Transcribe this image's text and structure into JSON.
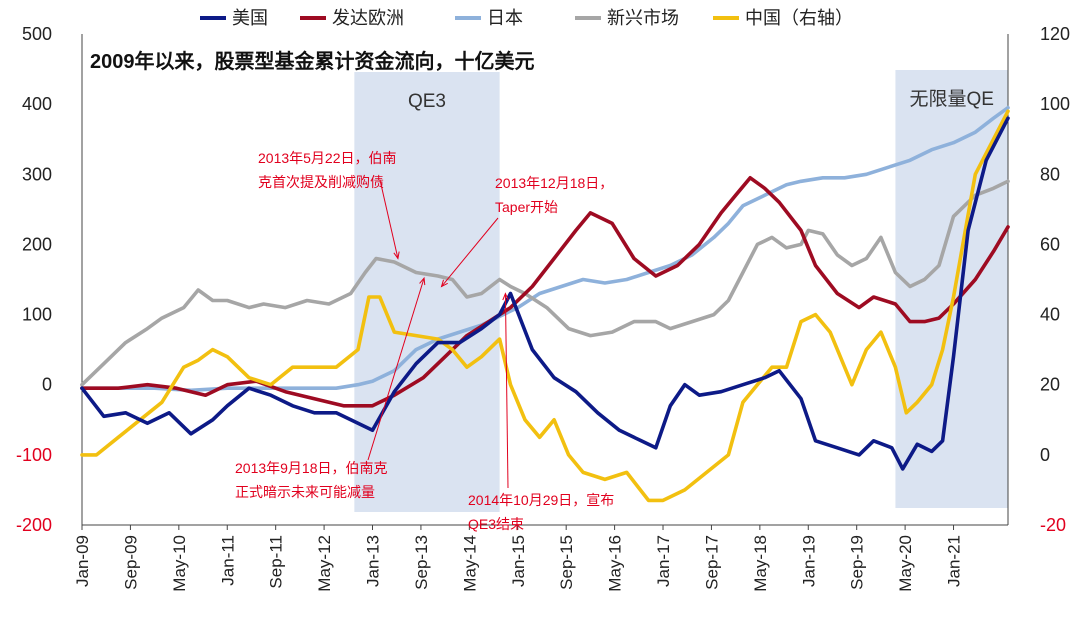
{
  "chart_data": {
    "type": "line",
    "title": "2009年以来，股票型基金累计资金流向，十亿美元",
    "x_ticks": [
      "Jan-09",
      "Sep-09",
      "May-10",
      "Jan-11",
      "Sep-11",
      "May-12",
      "Jan-13",
      "Sep-13",
      "May-14",
      "Jan-15",
      "Sep-15",
      "May-16",
      "Jan-17",
      "Sep-17",
      "May-18",
      "Jan-19",
      "Sep-19",
      "May-20",
      "Jan-21"
    ],
    "x_range": [
      2009.0,
      2021.75
    ],
    "y_left": {
      "ticks": [
        "500",
        "400",
        "300",
        "200",
        "100",
        "0",
        "-100",
        "-200"
      ],
      "range": [
        -200,
        500
      ]
    },
    "y_right": {
      "ticks": [
        "120",
        "100",
        "80",
        "60",
        "40",
        "20",
        "0",
        "-20"
      ],
      "range": [
        -20,
        120
      ]
    },
    "bands": [
      {
        "label": "QE3",
        "start": 2012.75,
        "end": 2014.75
      },
      {
        "label": "无限量QE",
        "start": 2020.2,
        "end": 2021.75
      }
    ],
    "annotations": [
      {
        "id": "a1",
        "lines": [
          "2013年5月22日，伯南",
          "克首次提及削减购债"
        ],
        "anchor": [
          2013.35,
          180
        ],
        "placement": "upper-left"
      },
      {
        "id": "a2",
        "lines": [
          "2013年12月18日，",
          "Taper开始"
        ],
        "anchor": [
          2013.95,
          140
        ],
        "placement": "upper-right"
      },
      {
        "id": "a3",
        "lines": [
          "2013年9月18日，伯南克",
          "正式暗示未来可能减量"
        ],
        "anchor": [
          2013.71,
          152
        ],
        "placement": "lower-left"
      },
      {
        "id": "a4",
        "lines": [
          "2014年10月29日，宣布",
          "QE3结束"
        ],
        "anchor": [
          2014.83,
          130
        ],
        "placement": "lower-right"
      }
    ],
    "series": [
      {
        "name": "美国",
        "color": "#0d1a87",
        "axis": "left",
        "points": [
          [
            2009.0,
            -5
          ],
          [
            2009.3,
            -45
          ],
          [
            2009.6,
            -40
          ],
          [
            2009.9,
            -55
          ],
          [
            2010.2,
            -40
          ],
          [
            2010.5,
            -70
          ],
          [
            2010.8,
            -50
          ],
          [
            2011.0,
            -30
          ],
          [
            2011.3,
            -5
          ],
          [
            2011.6,
            -15
          ],
          [
            2011.9,
            -30
          ],
          [
            2012.2,
            -40
          ],
          [
            2012.5,
            -40
          ],
          [
            2012.8,
            -55
          ],
          [
            2013.0,
            -65
          ],
          [
            2013.3,
            -10
          ],
          [
            2013.6,
            30
          ],
          [
            2013.9,
            60
          ],
          [
            2014.2,
            60
          ],
          [
            2014.5,
            80
          ],
          [
            2014.75,
            100
          ],
          [
            2014.9,
            130
          ],
          [
            2015.2,
            50
          ],
          [
            2015.5,
            10
          ],
          [
            2015.8,
            -10
          ],
          [
            2016.1,
            -40
          ],
          [
            2016.4,
            -65
          ],
          [
            2016.7,
            -80
          ],
          [
            2016.9,
            -90
          ],
          [
            2017.1,
            -30
          ],
          [
            2017.3,
            0
          ],
          [
            2017.5,
            -15
          ],
          [
            2017.8,
            -10
          ],
          [
            2018.1,
            0
          ],
          [
            2018.4,
            10
          ],
          [
            2018.6,
            20
          ],
          [
            2018.9,
            -20
          ],
          [
            2019.1,
            -80
          ],
          [
            2019.4,
            -90
          ],
          [
            2019.7,
            -100
          ],
          [
            2019.9,
            -80
          ],
          [
            2020.15,
            -90
          ],
          [
            2020.3,
            -120
          ],
          [
            2020.5,
            -85
          ],
          [
            2020.7,
            -95
          ],
          [
            2020.85,
            -80
          ],
          [
            2021.0,
            40
          ],
          [
            2021.2,
            220
          ],
          [
            2021.45,
            320
          ],
          [
            2021.75,
            380
          ]
        ]
      },
      {
        "name": "发达欧洲",
        "color": "#9e0b22",
        "axis": "left",
        "points": [
          [
            2009.0,
            -5
          ],
          [
            2009.5,
            -5
          ],
          [
            2009.9,
            0
          ],
          [
            2010.3,
            -5
          ],
          [
            2010.7,
            -15
          ],
          [
            2011.0,
            0
          ],
          [
            2011.4,
            5
          ],
          [
            2011.8,
            -10
          ],
          [
            2012.2,
            -20
          ],
          [
            2012.6,
            -30
          ],
          [
            2013.0,
            -30
          ],
          [
            2013.3,
            -15
          ],
          [
            2013.7,
            10
          ],
          [
            2014.0,
            40
          ],
          [
            2014.3,
            70
          ],
          [
            2014.6,
            90
          ],
          [
            2014.9,
            110
          ],
          [
            2015.2,
            140
          ],
          [
            2015.5,
            180
          ],
          [
            2015.8,
            220
          ],
          [
            2016.0,
            245
          ],
          [
            2016.3,
            230
          ],
          [
            2016.6,
            180
          ],
          [
            2016.9,
            155
          ],
          [
            2017.2,
            170
          ],
          [
            2017.5,
            200
          ],
          [
            2017.8,
            245
          ],
          [
            2018.0,
            270
          ],
          [
            2018.2,
            295
          ],
          [
            2018.4,
            280
          ],
          [
            2018.6,
            260
          ],
          [
            2018.9,
            220
          ],
          [
            2019.1,
            170
          ],
          [
            2019.4,
            130
          ],
          [
            2019.7,
            110
          ],
          [
            2019.9,
            125
          ],
          [
            2020.2,
            115
          ],
          [
            2020.4,
            90
          ],
          [
            2020.6,
            90
          ],
          [
            2020.8,
            95
          ],
          [
            2021.0,
            115
          ],
          [
            2021.3,
            150
          ],
          [
            2021.55,
            190
          ],
          [
            2021.75,
            225
          ]
        ]
      },
      {
        "name": "日本",
        "color": "#8eb1db",
        "axis": "left",
        "points": [
          [
            2009.0,
            -5
          ],
          [
            2009.5,
            -5
          ],
          [
            2010.0,
            -5
          ],
          [
            2010.5,
            -8
          ],
          [
            2011.0,
            -5
          ],
          [
            2011.5,
            -5
          ],
          [
            2012.0,
            -5
          ],
          [
            2012.5,
            -5
          ],
          [
            2012.8,
            0
          ],
          [
            2013.0,
            5
          ],
          [
            2013.3,
            20
          ],
          [
            2013.6,
            50
          ],
          [
            2013.9,
            65
          ],
          [
            2014.2,
            75
          ],
          [
            2014.5,
            85
          ],
          [
            2014.8,
            100
          ],
          [
            2015.0,
            110
          ],
          [
            2015.3,
            130
          ],
          [
            2015.6,
            140
          ],
          [
            2015.9,
            150
          ],
          [
            2016.2,
            145
          ],
          [
            2016.5,
            150
          ],
          [
            2016.8,
            160
          ],
          [
            2017.1,
            170
          ],
          [
            2017.4,
            185
          ],
          [
            2017.7,
            210
          ],
          [
            2017.9,
            230
          ],
          [
            2018.1,
            255
          ],
          [
            2018.4,
            270
          ],
          [
            2018.7,
            285
          ],
          [
            2018.9,
            290
          ],
          [
            2019.2,
            295
          ],
          [
            2019.5,
            295
          ],
          [
            2019.8,
            300
          ],
          [
            2020.1,
            310
          ],
          [
            2020.4,
            320
          ],
          [
            2020.7,
            335
          ],
          [
            2021.0,
            345
          ],
          [
            2021.3,
            360
          ],
          [
            2021.55,
            380
          ],
          [
            2021.75,
            395
          ]
        ]
      },
      {
        "name": "新兴市场",
        "color": "#a6a6a6",
        "axis": "left",
        "points": [
          [
            2009.0,
            0
          ],
          [
            2009.3,
            30
          ],
          [
            2009.6,
            60
          ],
          [
            2009.9,
            80
          ],
          [
            2010.1,
            95
          ],
          [
            2010.4,
            110
          ],
          [
            2010.6,
            135
          ],
          [
            2010.8,
            120
          ],
          [
            2011.0,
            120
          ],
          [
            2011.3,
            110
          ],
          [
            2011.5,
            115
          ],
          [
            2011.8,
            110
          ],
          [
            2012.1,
            120
          ],
          [
            2012.4,
            115
          ],
          [
            2012.7,
            130
          ],
          [
            2012.9,
            160
          ],
          [
            2013.05,
            180
          ],
          [
            2013.3,
            175
          ],
          [
            2013.6,
            160
          ],
          [
            2013.9,
            155
          ],
          [
            2014.1,
            150
          ],
          [
            2014.3,
            125
          ],
          [
            2014.5,
            130
          ],
          [
            2014.75,
            150
          ],
          [
            2014.9,
            140
          ],
          [
            2015.1,
            130
          ],
          [
            2015.4,
            110
          ],
          [
            2015.7,
            80
          ],
          [
            2016.0,
            70
          ],
          [
            2016.3,
            75
          ],
          [
            2016.6,
            90
          ],
          [
            2016.9,
            90
          ],
          [
            2017.1,
            80
          ],
          [
            2017.4,
            90
          ],
          [
            2017.7,
            100
          ],
          [
            2017.9,
            120
          ],
          [
            2018.1,
            160
          ],
          [
            2018.3,
            200
          ],
          [
            2018.5,
            210
          ],
          [
            2018.7,
            195
          ],
          [
            2018.9,
            200
          ],
          [
            2019.0,
            220
          ],
          [
            2019.2,
            215
          ],
          [
            2019.4,
            185
          ],
          [
            2019.6,
            170
          ],
          [
            2019.8,
            180
          ],
          [
            2020.0,
            210
          ],
          [
            2020.2,
            160
          ],
          [
            2020.4,
            140
          ],
          [
            2020.6,
            150
          ],
          [
            2020.8,
            170
          ],
          [
            2021.0,
            240
          ],
          [
            2021.3,
            270
          ],
          [
            2021.55,
            280
          ],
          [
            2021.75,
            290
          ]
        ]
      },
      {
        "name": "中国（右轴）",
        "color": "#f2c010",
        "axis": "right",
        "points": [
          [
            2009.0,
            0
          ],
          [
            2009.2,
            0
          ],
          [
            2009.5,
            5
          ],
          [
            2009.8,
            10
          ],
          [
            2010.1,
            15
          ],
          [
            2010.4,
            25
          ],
          [
            2010.6,
            27
          ],
          [
            2010.8,
            30
          ],
          [
            2011.0,
            28
          ],
          [
            2011.3,
            22
          ],
          [
            2011.6,
            20
          ],
          [
            2011.9,
            25
          ],
          [
            2012.2,
            25
          ],
          [
            2012.5,
            25
          ],
          [
            2012.8,
            30
          ],
          [
            2012.95,
            45
          ],
          [
            2013.1,
            45
          ],
          [
            2013.3,
            35
          ],
          [
            2013.6,
            34
          ],
          [
            2013.9,
            33
          ],
          [
            2014.1,
            30
          ],
          [
            2014.3,
            25
          ],
          [
            2014.5,
            28
          ],
          [
            2014.75,
            33
          ],
          [
            2014.9,
            20
          ],
          [
            2015.1,
            10
          ],
          [
            2015.3,
            5
          ],
          [
            2015.5,
            10
          ],
          [
            2015.7,
            0
          ],
          [
            2015.9,
            -5
          ],
          [
            2016.2,
            -7
          ],
          [
            2016.5,
            -5
          ],
          [
            2016.8,
            -13
          ],
          [
            2017.0,
            -13
          ],
          [
            2017.3,
            -10
          ],
          [
            2017.6,
            -5
          ],
          [
            2017.9,
            0
          ],
          [
            2018.1,
            15
          ],
          [
            2018.3,
            20
          ],
          [
            2018.5,
            25
          ],
          [
            2018.7,
            25
          ],
          [
            2018.9,
            38
          ],
          [
            2019.1,
            40
          ],
          [
            2019.3,
            35
          ],
          [
            2019.6,
            20
          ],
          [
            2019.8,
            30
          ],
          [
            2020.0,
            35
          ],
          [
            2020.2,
            25
          ],
          [
            2020.35,
            12
          ],
          [
            2020.5,
            15
          ],
          [
            2020.7,
            20
          ],
          [
            2020.85,
            30
          ],
          [
            2021.0,
            45
          ],
          [
            2021.3,
            80
          ],
          [
            2021.55,
            90
          ],
          [
            2021.75,
            98
          ]
        ]
      }
    ]
  }
}
